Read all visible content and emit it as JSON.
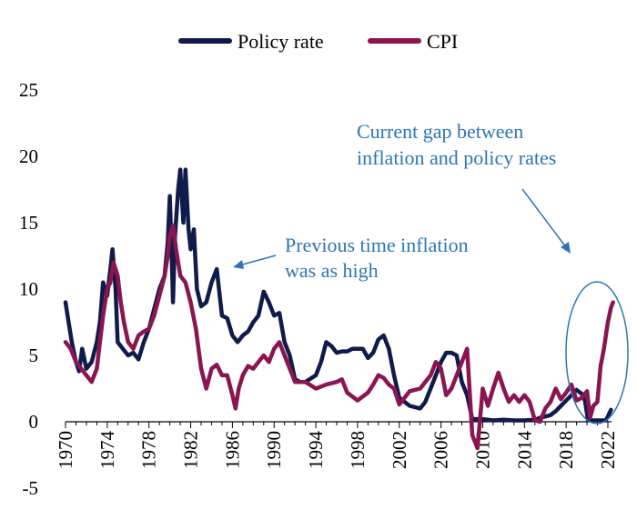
{
  "chart_data": {
    "type": "line",
    "title": "",
    "xlabel": "",
    "ylabel": "",
    "ylim": [
      -5,
      25
    ],
    "yticks": [
      "-5",
      "0",
      "5",
      "10",
      "15",
      "20",
      "25"
    ],
    "xlim": [
      1970,
      2022.5
    ],
    "xticks": [
      "1970",
      "1974",
      "1978",
      "1982",
      "1986",
      "1990",
      "1994",
      "1998",
      "2002",
      "2006",
      "2010",
      "2014",
      "2018",
      "2022"
    ],
    "grid": false,
    "legend_position": "top",
    "colors": {
      "policy_rate": "#0f1b4a",
      "cpi": "#8b1550",
      "annotation": "#2E75B6"
    },
    "series": [
      {
        "name": "Policy rate",
        "points": [
          [
            1970.0,
            9.0
          ],
          [
            1970.3,
            7.5
          ],
          [
            1970.6,
            6.0
          ],
          [
            1971.0,
            4.5
          ],
          [
            1971.3,
            3.8
          ],
          [
            1971.6,
            5.5
          ],
          [
            1972.0,
            4.0
          ],
          [
            1972.5,
            4.5
          ],
          [
            1973.0,
            6.0
          ],
          [
            1973.3,
            7.5
          ],
          [
            1973.6,
            10.5
          ],
          [
            1974.0,
            9.5
          ],
          [
            1974.3,
            11.5
          ],
          [
            1974.5,
            13.0
          ],
          [
            1974.8,
            10.0
          ],
          [
            1975.0,
            6.0
          ],
          [
            1975.5,
            5.5
          ],
          [
            1976.0,
            5.0
          ],
          [
            1976.5,
            5.2
          ],
          [
            1977.0,
            4.7
          ],
          [
            1977.5,
            6.0
          ],
          [
            1978.0,
            7.0
          ],
          [
            1978.5,
            8.5
          ],
          [
            1979.0,
            10.0
          ],
          [
            1979.5,
            11.0
          ],
          [
            1979.8,
            13.5
          ],
          [
            1980.0,
            17.0
          ],
          [
            1980.2,
            12.0
          ],
          [
            1980.3,
            9.0
          ],
          [
            1980.5,
            14.0
          ],
          [
            1980.8,
            17.5
          ],
          [
            1981.0,
            19.0
          ],
          [
            1981.3,
            15.0
          ],
          [
            1981.5,
            19.0
          ],
          [
            1981.8,
            14.5
          ],
          [
            1982.0,
            13.0
          ],
          [
            1982.3,
            14.5
          ],
          [
            1982.6,
            10.0
          ],
          [
            1983.0,
            8.7
          ],
          [
            1983.5,
            9.0
          ],
          [
            1984.0,
            10.5
          ],
          [
            1984.5,
            11.5
          ],
          [
            1985.0,
            8.0
          ],
          [
            1985.5,
            7.8
          ],
          [
            1986.0,
            6.5
          ],
          [
            1986.5,
            6.0
          ],
          [
            1987.0,
            6.5
          ],
          [
            1987.5,
            6.8
          ],
          [
            1988.0,
            7.5
          ],
          [
            1988.5,
            8.0
          ],
          [
            1989.0,
            9.8
          ],
          [
            1989.5,
            9.0
          ],
          [
            1990.0,
            8.0
          ],
          [
            1990.5,
            8.2
          ],
          [
            1991.0,
            6.0
          ],
          [
            1991.5,
            5.0
          ],
          [
            1992.0,
            3.2
          ],
          [
            1992.5,
            3.0
          ],
          [
            1993.0,
            3.0
          ],
          [
            1994.0,
            3.5
          ],
          [
            1994.5,
            4.5
          ],
          [
            1995.0,
            6.0
          ],
          [
            1995.5,
            5.7
          ],
          [
            1996.0,
            5.2
          ],
          [
            1996.5,
            5.3
          ],
          [
            1997.0,
            5.3
          ],
          [
            1997.5,
            5.5
          ],
          [
            1998.0,
            5.5
          ],
          [
            1998.5,
            5.5
          ],
          [
            1999.0,
            4.8
          ],
          [
            1999.5,
            5.2
          ],
          [
            2000.0,
            6.2
          ],
          [
            2000.5,
            6.5
          ],
          [
            2001.0,
            5.5
          ],
          [
            2001.5,
            3.5
          ],
          [
            2002.0,
            1.8
          ],
          [
            2003.0,
            1.2
          ],
          [
            2004.0,
            1.0
          ],
          [
            2004.5,
            1.5
          ],
          [
            2005.0,
            2.5
          ],
          [
            2005.5,
            3.5
          ],
          [
            2006.0,
            4.5
          ],
          [
            2006.5,
            5.2
          ],
          [
            2007.0,
            5.2
          ],
          [
            2007.5,
            5.0
          ],
          [
            2008.0,
            3.0
          ],
          [
            2008.5,
            2.0
          ],
          [
            2009.0,
            0.2
          ],
          [
            2010.0,
            0.2
          ],
          [
            2011.0,
            0.1
          ],
          [
            2012.0,
            0.15
          ],
          [
            2013.0,
            0.1
          ],
          [
            2014.0,
            0.1
          ],
          [
            2015.0,
            0.15
          ],
          [
            2015.5,
            0.3
          ],
          [
            2016.0,
            0.4
          ],
          [
            2016.5,
            0.5
          ],
          [
            2017.0,
            0.8
          ],
          [
            2017.5,
            1.2
          ],
          [
            2018.0,
            1.6
          ],
          [
            2018.5,
            2.0
          ],
          [
            2019.0,
            2.4
          ],
          [
            2019.5,
            2.1
          ],
          [
            2019.8,
            1.6
          ],
          [
            2020.1,
            0.1
          ],
          [
            2021.0,
            0.1
          ],
          [
            2021.8,
            0.1
          ],
          [
            2022.0,
            0.4
          ],
          [
            2022.3,
            0.9
          ]
        ]
      },
      {
        "name": "CPI",
        "points": [
          [
            1970.0,
            6.0
          ],
          [
            1970.5,
            5.5
          ],
          [
            1971.0,
            4.5
          ],
          [
            1971.5,
            4.0
          ],
          [
            1972.0,
            3.5
          ],
          [
            1972.5,
            3.0
          ],
          [
            1973.0,
            4.0
          ],
          [
            1973.3,
            6.0
          ],
          [
            1973.6,
            8.0
          ],
          [
            1974.0,
            10.0
          ],
          [
            1974.3,
            10.5
          ],
          [
            1974.6,
            12.0
          ],
          [
            1975.0,
            11.0
          ],
          [
            1975.3,
            9.0
          ],
          [
            1975.6,
            7.5
          ],
          [
            1976.0,
            6.0
          ],
          [
            1976.5,
            5.5
          ],
          [
            1977.0,
            6.5
          ],
          [
            1977.5,
            6.8
          ],
          [
            1978.0,
            7.0
          ],
          [
            1978.5,
            8.0
          ],
          [
            1979.0,
            9.5
          ],
          [
            1979.5,
            11.0
          ],
          [
            1979.8,
            12.5
          ],
          [
            1980.0,
            14.0
          ],
          [
            1980.3,
            14.8
          ],
          [
            1980.6,
            13.0
          ],
          [
            1981.0,
            11.0
          ],
          [
            1981.5,
            10.5
          ],
          [
            1982.0,
            9.0
          ],
          [
            1982.5,
            7.0
          ],
          [
            1983.0,
            4.0
          ],
          [
            1983.5,
            2.5
          ],
          [
            1984.0,
            4.0
          ],
          [
            1984.5,
            4.3
          ],
          [
            1985.0,
            3.5
          ],
          [
            1985.5,
            3.5
          ],
          [
            1986.0,
            2.0
          ],
          [
            1986.3,
            1.0
          ],
          [
            1986.6,
            2.5
          ],
          [
            1987.0,
            3.5
          ],
          [
            1987.5,
            4.2
          ],
          [
            1988.0,
            4.0
          ],
          [
            1988.5,
            4.5
          ],
          [
            1989.0,
            5.0
          ],
          [
            1989.5,
            4.5
          ],
          [
            1990.0,
            5.5
          ],
          [
            1990.5,
            6.0
          ],
          [
            1991.0,
            5.0
          ],
          [
            1991.5,
            4.0
          ],
          [
            1992.0,
            3.0
          ],
          [
            1992.5,
            3.0
          ],
          [
            1993.0,
            3.0
          ],
          [
            1994.0,
            2.5
          ],
          [
            1995.0,
            2.8
          ],
          [
            1996.0,
            3.0
          ],
          [
            1996.5,
            3.2
          ],
          [
            1997.0,
            2.2
          ],
          [
            1998.0,
            1.6
          ],
          [
            1999.0,
            2.2
          ],
          [
            1999.5,
            2.8
          ],
          [
            2000.0,
            3.5
          ],
          [
            2000.5,
            3.3
          ],
          [
            2001.0,
            2.8
          ],
          [
            2001.5,
            2.5
          ],
          [
            2002.0,
            1.3
          ],
          [
            2003.0,
            2.3
          ],
          [
            2004.0,
            2.5
          ],
          [
            2004.5,
            3.0
          ],
          [
            2005.0,
            3.5
          ],
          [
            2005.5,
            4.5
          ],
          [
            2006.0,
            4.0
          ],
          [
            2006.5,
            2.0
          ],
          [
            2007.0,
            2.5
          ],
          [
            2007.5,
            3.5
          ],
          [
            2008.0,
            4.5
          ],
          [
            2008.5,
            5.5
          ],
          [
            2009.0,
            -1.0
          ],
          [
            2009.5,
            -2.0
          ],
          [
            2010.0,
            2.5
          ],
          [
            2010.5,
            1.2
          ],
          [
            2011.0,
            2.5
          ],
          [
            2011.5,
            3.7
          ],
          [
            2012.0,
            2.5
          ],
          [
            2012.5,
            1.5
          ],
          [
            2013.0,
            2.0
          ],
          [
            2013.5,
            1.5
          ],
          [
            2014.0,
            2.0
          ],
          [
            2014.5,
            1.5
          ],
          [
            2015.0,
            0.1
          ],
          [
            2015.5,
            0.0
          ],
          [
            2016.0,
            1.0
          ],
          [
            2016.5,
            1.5
          ],
          [
            2017.0,
            2.5
          ],
          [
            2017.5,
            1.7
          ],
          [
            2018.0,
            2.2
          ],
          [
            2018.5,
            2.8
          ],
          [
            2019.0,
            1.6
          ],
          [
            2019.5,
            1.8
          ],
          [
            2020.0,
            2.3
          ],
          [
            2020.3,
            0.3
          ],
          [
            2020.6,
            1.2
          ],
          [
            2021.0,
            1.5
          ],
          [
            2021.3,
            4.2
          ],
          [
            2021.6,
            5.4
          ],
          [
            2022.0,
            7.5
          ],
          [
            2022.3,
            8.6
          ],
          [
            2022.5,
            9.0
          ]
        ]
      }
    ],
    "annotations": [
      {
        "lines": [
          "Previous time inflation",
          "was as high"
        ]
      },
      {
        "lines": [
          "Current gap between",
          "inflation and policy rates"
        ]
      }
    ]
  }
}
